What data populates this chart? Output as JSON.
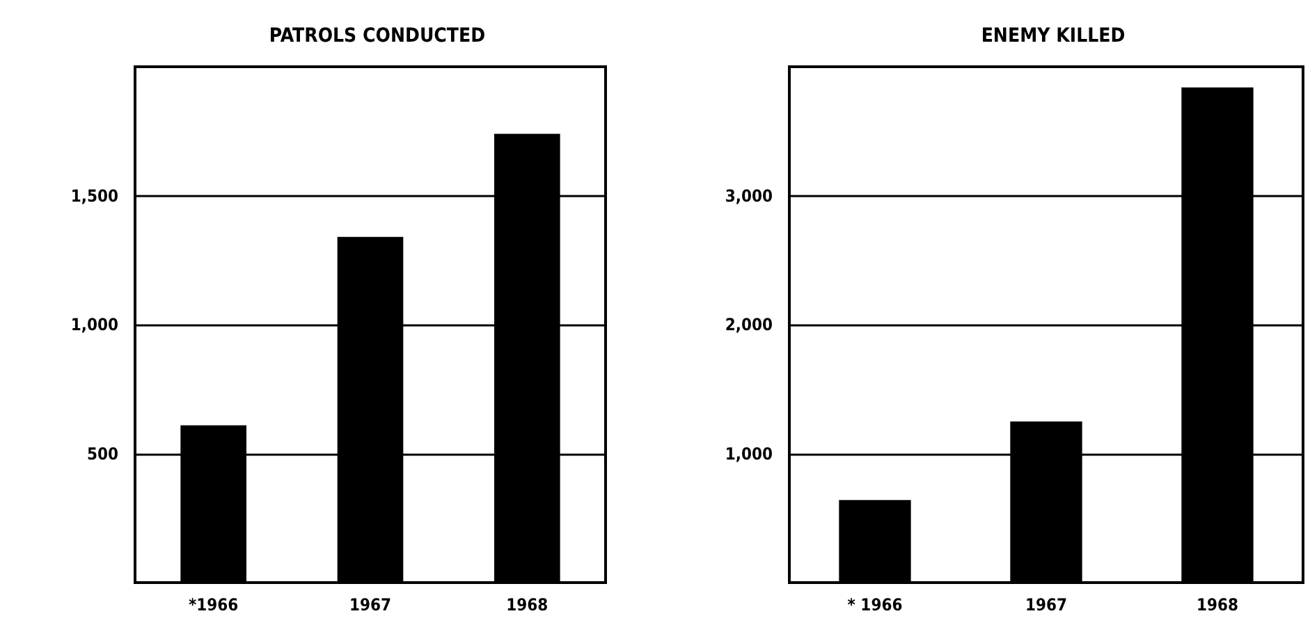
{
  "chart_data": [
    {
      "type": "bar",
      "title": "PATROLS CONDUCTED",
      "categories": [
        "*1966",
        "1967",
        "1968"
      ],
      "values": [
        610,
        1340,
        1740
      ],
      "color": "#000000",
      "ylim": [
        0,
        2000
      ],
      "yticks": [
        {
          "value": 500,
          "label": "500"
        },
        {
          "value": 1000,
          "label": "1,000"
        },
        {
          "value": 1500,
          "label": "1,500"
        }
      ],
      "grid": "y"
    },
    {
      "type": "bar",
      "title": "ENEMY KILLED",
      "categories": [
        "* 1966",
        "1967",
        "1968"
      ],
      "values": [
        640,
        1250,
        3840
      ],
      "color": "#000000",
      "ylim": [
        0,
        4000
      ],
      "yticks": [
        {
          "value": 1000,
          "label": "1,000"
        },
        {
          "value": 2000,
          "label": "2,000"
        },
        {
          "value": 3000,
          "label": "3,000"
        }
      ],
      "grid": "y"
    }
  ]
}
